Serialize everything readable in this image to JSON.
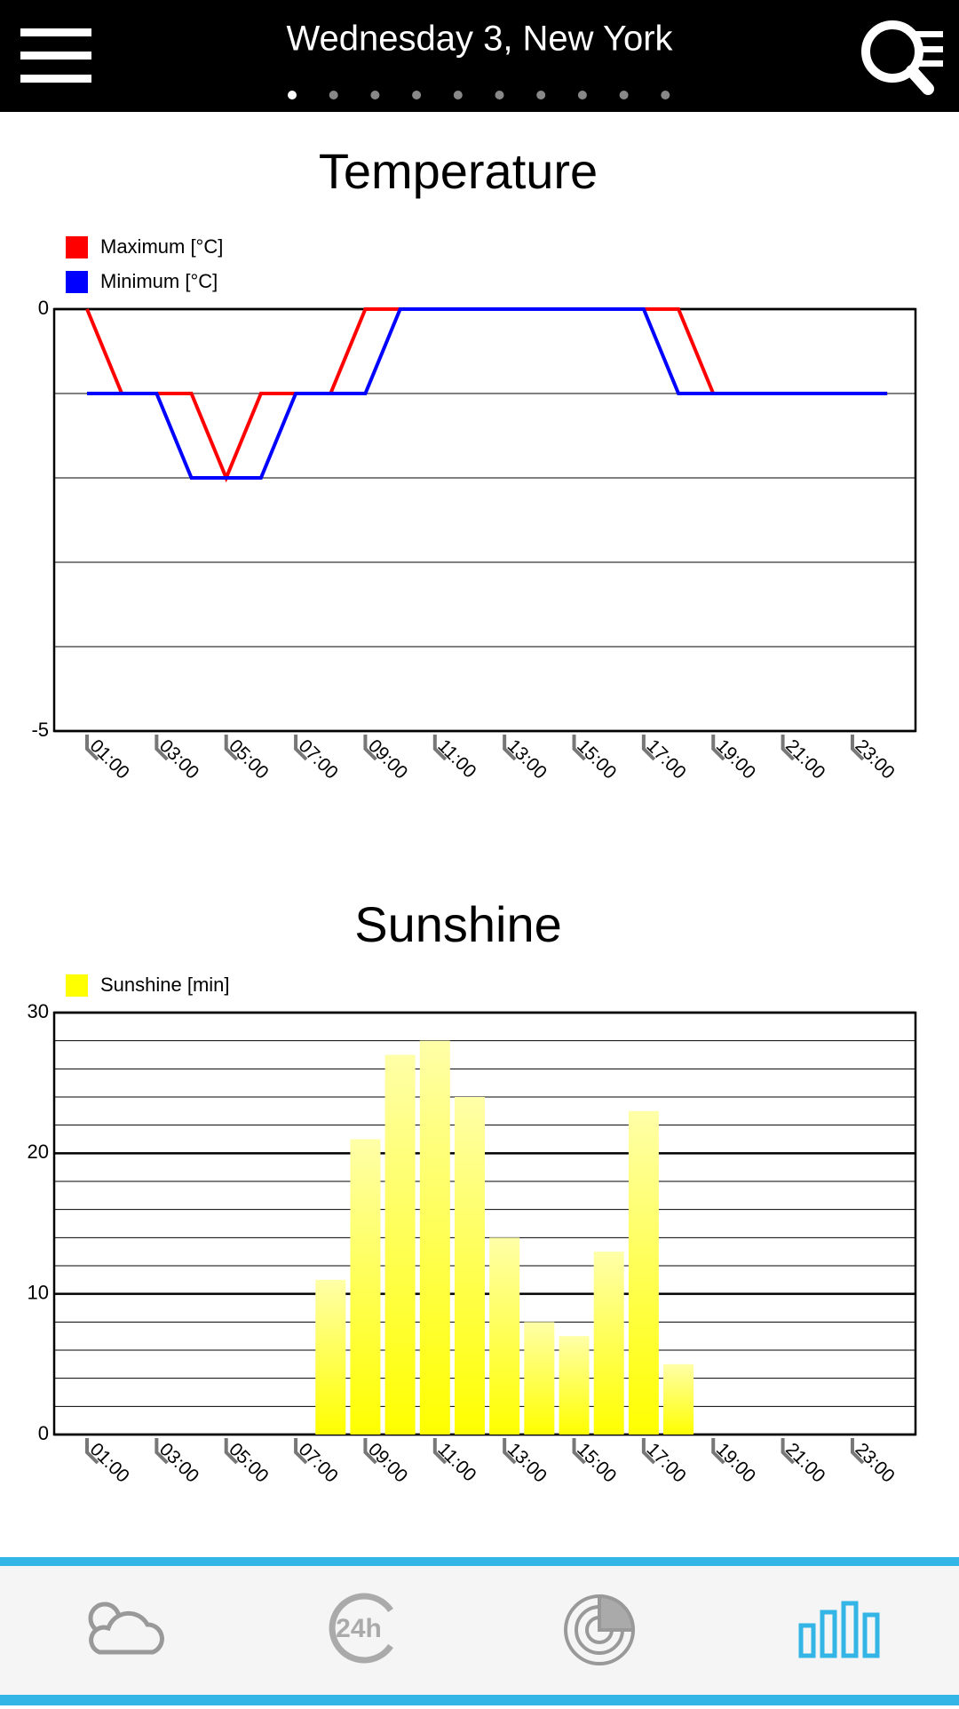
{
  "header": {
    "title": "Wednesday 3, New York"
  },
  "chart_data": [
    {
      "type": "line",
      "title": "Temperature",
      "categories": [
        "01:00",
        null,
        "03:00",
        null,
        "05:00",
        null,
        "07:00",
        null,
        "09:00",
        null,
        "11:00",
        null,
        "13:00",
        null,
        "15:00",
        null,
        "17:00",
        null,
        "19:00",
        null,
        "21:00",
        null,
        "23:00",
        null
      ],
      "series": [
        {
          "name": "Maximum [°C]",
          "color": "#ff0000",
          "values": [
            0,
            -1,
            -1,
            -1,
            -2,
            -1,
            -1,
            -1,
            0,
            0,
            0,
            0,
            0,
            0,
            0,
            0,
            0,
            0,
            -1,
            -1,
            -1,
            -1,
            -1,
            -1
          ]
        },
        {
          "name": "Minimum [°C]",
          "color": "#0000ff",
          "values": [
            -1,
            -1,
            -1,
            -2,
            -2,
            -2,
            -1,
            -1,
            -1,
            0,
            0,
            0,
            0,
            0,
            0,
            0,
            0,
            -1,
            -1,
            -1,
            -1,
            -1,
            -1,
            -1
          ]
        }
      ],
      "ylim": [
        -5,
        0
      ],
      "yticks": [
        0,
        -5
      ],
      "minor_yticks": [
        -1,
        -2,
        -3,
        -4
      ]
    },
    {
      "type": "bar",
      "title": "Sunshine",
      "categories": [
        "01:00",
        null,
        "03:00",
        null,
        "05:00",
        null,
        "07:00",
        null,
        "09:00",
        null,
        "11:00",
        null,
        "13:00",
        null,
        "15:00",
        null,
        "17:00",
        null,
        "19:00",
        null,
        "21:00",
        null,
        "23:00",
        null
      ],
      "series": [
        {
          "name": "Sunshine [min]",
          "color": "#ffff00",
          "values": [
            0,
            0,
            0,
            0,
            0,
            0,
            0,
            11,
            21,
            27,
            28,
            24,
            14,
            8,
            7,
            13,
            23,
            5,
            0,
            0,
            0,
            0,
            0,
            0
          ]
        }
      ],
      "ylim": [
        0,
        30
      ],
      "yticks": [
        0,
        10,
        20,
        30
      ],
      "minor_yticks": [
        2,
        4,
        6,
        8,
        12,
        14,
        16,
        18,
        22,
        24,
        26,
        28
      ]
    }
  ]
}
